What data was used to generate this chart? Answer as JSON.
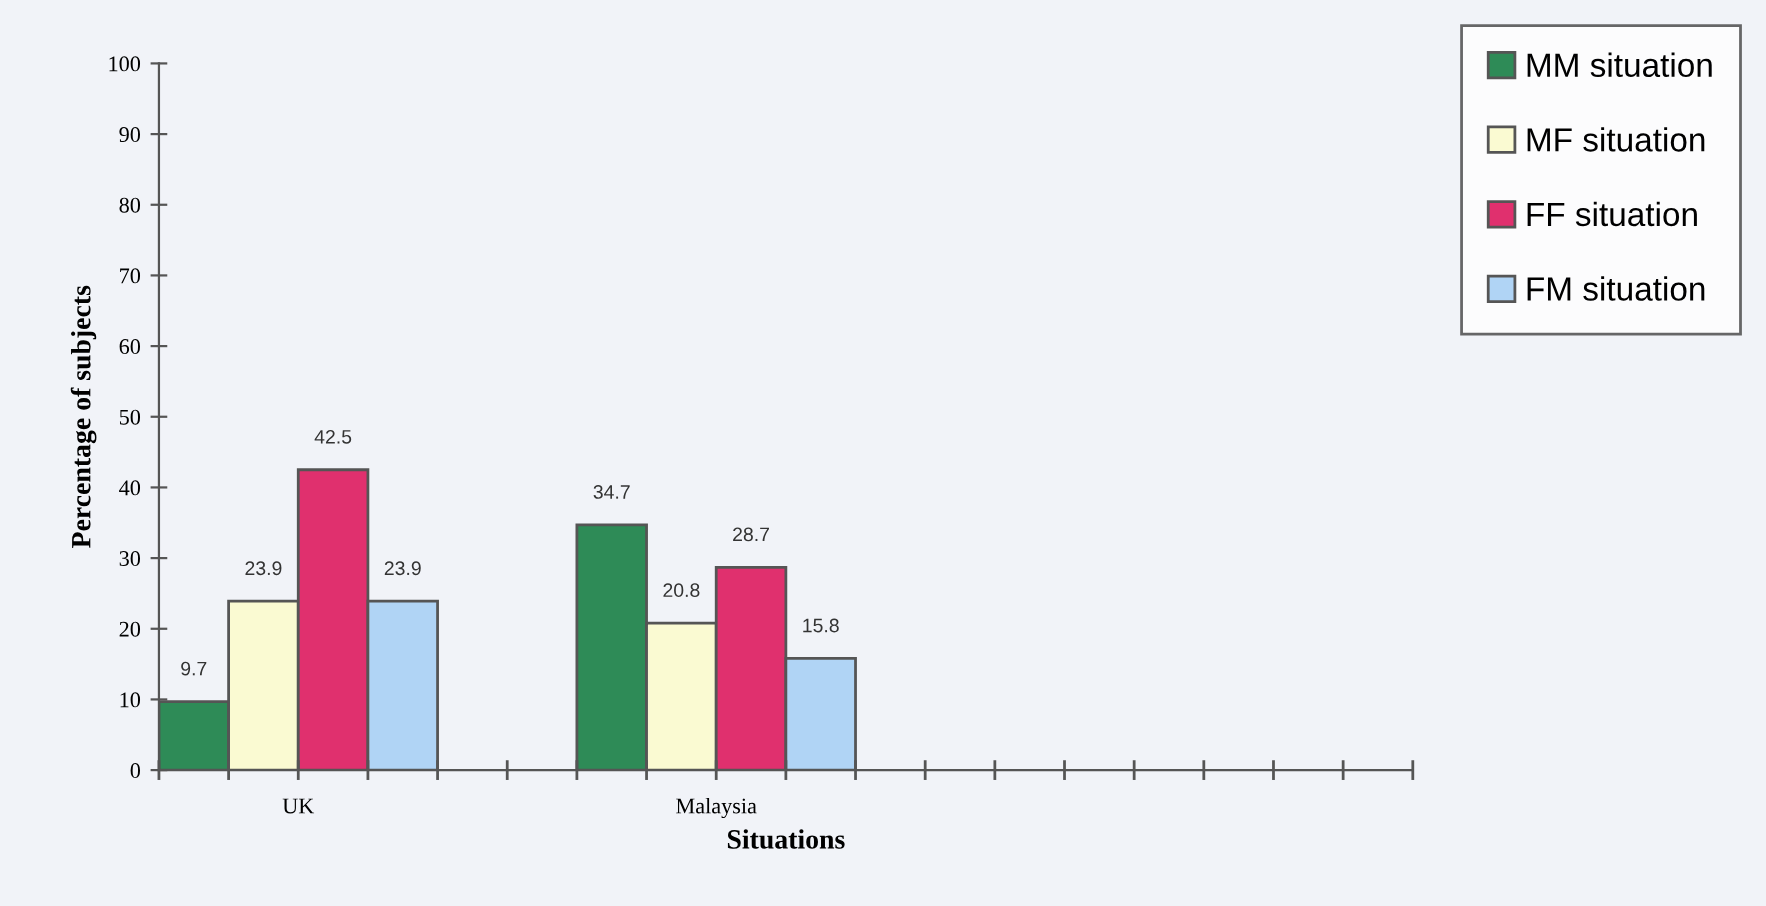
{
  "chart_data": {
    "type": "bar",
    "xlabel": "Situations",
    "ylabel": "Percentage of subjects",
    "categories": [
      "UK",
      "Malaysia"
    ],
    "series": [
      {
        "name": "MM situation",
        "color": "#2e8b57",
        "values": [
          9.7,
          34.7
        ]
      },
      {
        "name": "MF situation",
        "color": "#fafad2",
        "values": [
          23.9,
          20.8
        ]
      },
      {
        "name": "FF situation",
        "color": "#e0306e",
        "values": [
          42.5,
          28.7
        ]
      },
      {
        "name": "FM situation",
        "color": "#b0d4f5",
        "values": [
          23.9,
          15.8
        ]
      }
    ],
    "ylim": [
      0,
      100
    ],
    "yticks": [
      0,
      10,
      20,
      30,
      40,
      50,
      60,
      70,
      80,
      90,
      100
    ],
    "data_labels": true,
    "grid": false,
    "legend": "top right"
  }
}
